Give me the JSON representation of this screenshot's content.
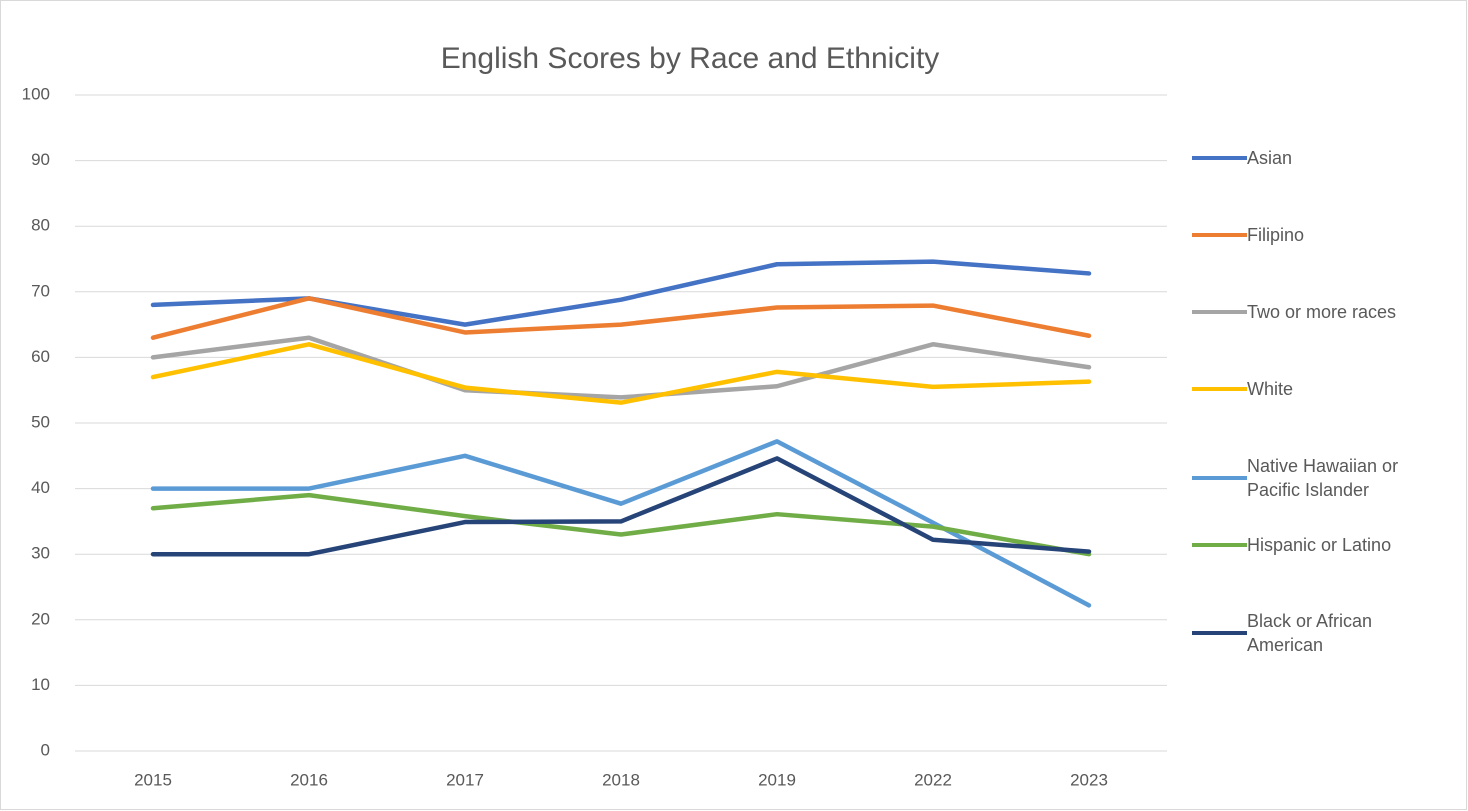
{
  "chart_data": {
    "type": "line",
    "title": "English Scores by Race and Ethnicity",
    "categories": [
      "2015",
      "2016",
      "2017",
      "2018",
      "2019",
      "2022",
      "2023"
    ],
    "series": [
      {
        "name": "Asian",
        "color": "#4472c4",
        "values": [
          68,
          69,
          65,
          68.8,
          74.2,
          74.6,
          72.8
        ]
      },
      {
        "name": "Filipino",
        "color": "#ed7d31",
        "values": [
          63,
          69,
          63.8,
          65,
          67.6,
          67.9,
          63.3
        ]
      },
      {
        "name": "Two or more races",
        "color": "#a5a5a5",
        "values": [
          60,
          63,
          55,
          53.9,
          55.6,
          62,
          58.5
        ]
      },
      {
        "name": "White",
        "color": "#ffc000",
        "values": [
          57,
          62,
          55.4,
          53.1,
          57.8,
          55.5,
          56.3
        ]
      },
      {
        "name": "Native Hawaiian or Pacific Islander",
        "color": "#5b9bd5",
        "values": [
          40,
          40,
          45,
          37.7,
          47.2,
          34.8,
          22.2
        ]
      },
      {
        "name": "Hispanic or Latino",
        "color": "#70ad47",
        "values": [
          37,
          39,
          35.8,
          33,
          36.1,
          34.2,
          30
        ]
      },
      {
        "name": "Black or African American",
        "color": "#264478",
        "values": [
          30,
          30,
          34.9,
          35,
          44.6,
          32.2,
          30.4
        ]
      }
    ],
    "ylim": [
      0,
      100
    ],
    "yticks": [
      0,
      10,
      20,
      30,
      40,
      50,
      60,
      70,
      80,
      90,
      100
    ],
    "grid": true,
    "legend": "right"
  }
}
